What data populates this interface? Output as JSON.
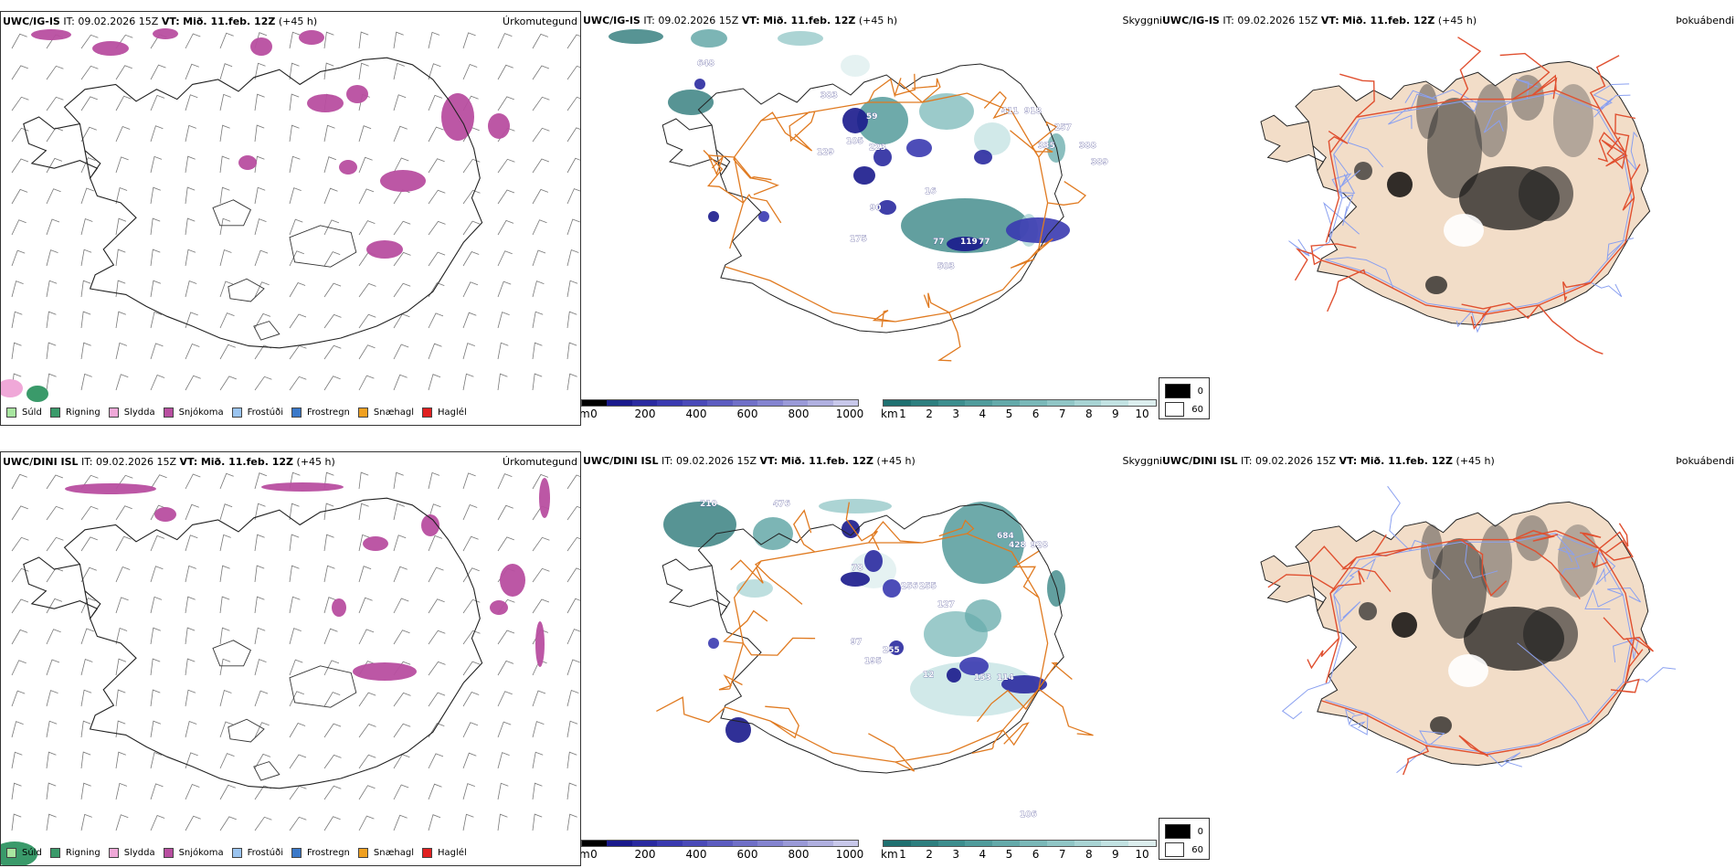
{
  "rows": [
    {
      "model": "UWC/IG-IS",
      "issue": "IT: 09.02.2026 15Z",
      "valid_label": "VT:",
      "valid": "Mið. 11.feb. 12Z",
      "lead": "(+45 h)"
    },
    {
      "model": "UWC/DINI ISL",
      "issue": "IT: 09.02.2026 15Z",
      "valid_label": "VT:",
      "valid": "Mið. 11.feb. 12Z",
      "lead": "(+45 h)"
    }
  ],
  "variables": {
    "precip_type": "Úrkomutegund",
    "visibility": "Skyggni",
    "fog": "Þokuábendi"
  },
  "precip_legend": [
    {
      "label": "Súld",
      "color": "#a8e6a0"
    },
    {
      "label": "Rigning",
      "color": "#3a9a6a"
    },
    {
      "label": "Slydda",
      "color": "#f0a8d8"
    },
    {
      "label": "Snjókoma",
      "color": "#b84ea0"
    },
    {
      "label": "Frostúði",
      "color": "#9ac4f0"
    },
    {
      "label": "Frostregn",
      "color": "#3a78c8"
    },
    {
      "label": "Snæhagl",
      "color": "#f0a020"
    },
    {
      "label": "Haglél",
      "color": "#e02020"
    }
  ],
  "cloudbase_scale": {
    "unit": "m",
    "ticks": [
      "0",
      "200",
      "400",
      "600",
      "800",
      "1000"
    ],
    "colors": [
      "#000000",
      "#1a1a8c",
      "#2a2aa0",
      "#3a3ab0",
      "#4a4ab8",
      "#5c5cc0",
      "#7070c8",
      "#8484d0",
      "#9a9ad8",
      "#b0b0e0",
      "#c8c8ea"
    ]
  },
  "visibility_scale": {
    "unit": "km",
    "ticks": [
      "1",
      "2",
      "3",
      "4",
      "5",
      "6",
      "7",
      "8",
      "9",
      "10"
    ],
    "colors": [
      "#1f7070",
      "#2d7f7f",
      "#3d8e8e",
      "#509c9c",
      "#64aaaa",
      "#7ab8b8",
      "#90c6c6",
      "#a8d4d4",
      "#c2e2e2",
      "#dceeee"
    ]
  },
  "fog_legend": [
    {
      "label": "0",
      "color": "#000000"
    },
    {
      "label": "60",
      "color": "#ffffff"
    }
  ],
  "cloud_labels_top": [
    "648",
    "383",
    "129",
    "105",
    "223",
    "59",
    "411",
    "918",
    "257",
    "335",
    "388",
    "389",
    "90",
    "175",
    "77",
    "119",
    "77",
    "16",
    "503"
  ],
  "cloud_labels_bottom": [
    "210",
    "476",
    "78",
    "256",
    "255",
    "127",
    "684",
    "428",
    "928",
    "106",
    "97",
    "255",
    "195",
    "12",
    "153",
    "114"
  ]
}
